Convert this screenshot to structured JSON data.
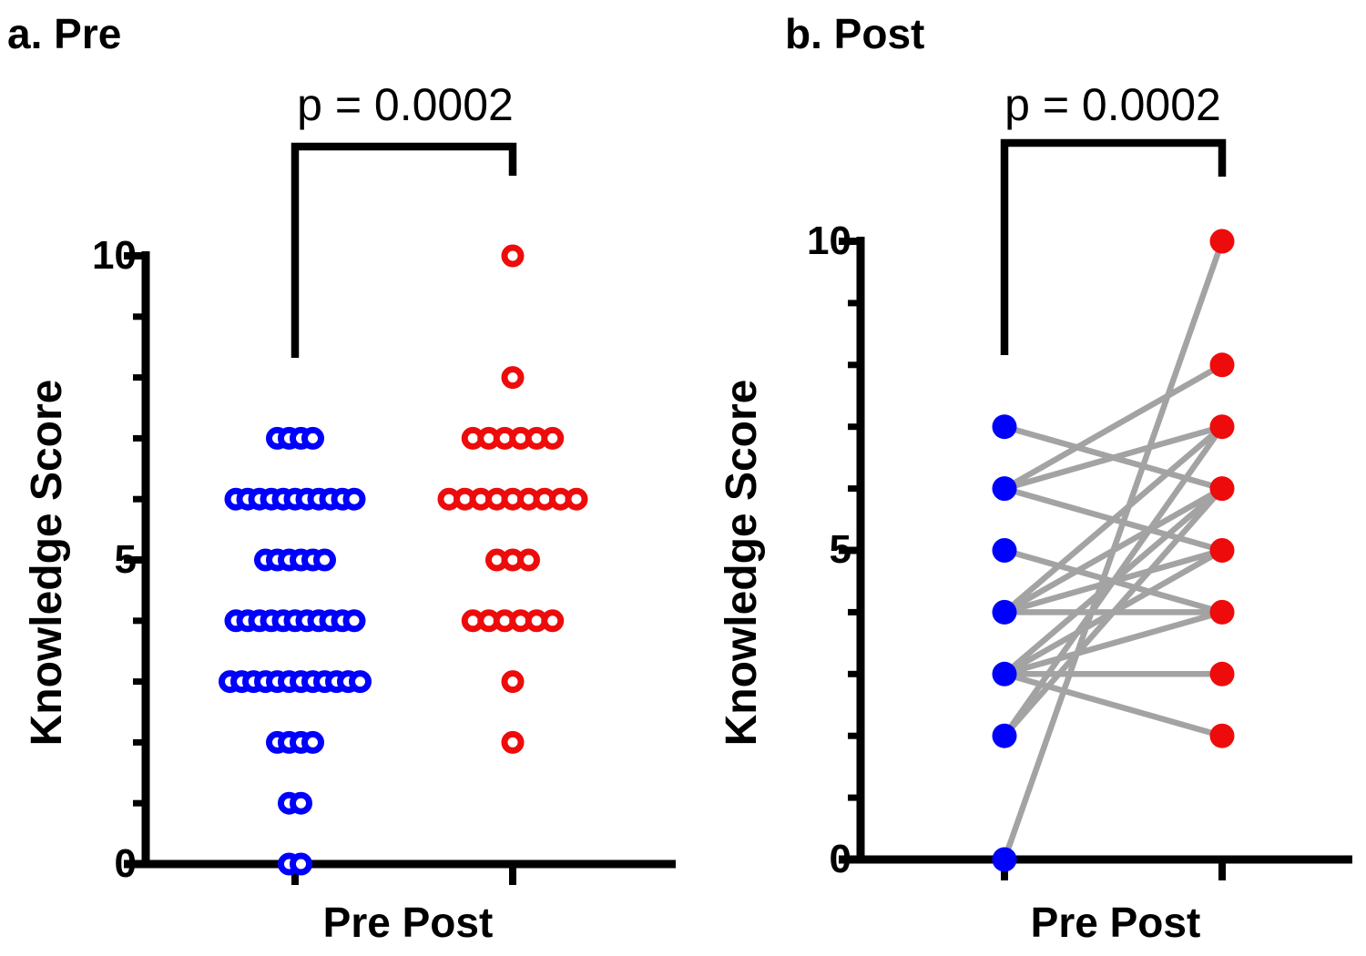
{
  "figure": {
    "background": "#ffffff",
    "description": "Two-panel GraphPad-style figure of knowledge scores before and after intervention"
  },
  "chart_data": [
    {
      "type": "scatter",
      "panel": "a",
      "title": "a. Pre",
      "annotation": "p = 0.0002",
      "ylabel": "Knowledge Score",
      "xlabel": "Pre Post",
      "categories": [
        "Pre",
        "Post"
      ],
      "ylim": [
        0,
        10
      ],
      "yticks_major": [
        0,
        5,
        10
      ],
      "yticks_minor": [
        1,
        2,
        3,
        4,
        6,
        7,
        8,
        9
      ],
      "ytick_labels": [
        "0",
        "5",
        "10"
      ],
      "marker": "open-circle",
      "legend": "none",
      "grid": false,
      "series": [
        {
          "name": "Pre",
          "color": "#0000FE",
          "value_counts": {
            "0": 2,
            "1": 2,
            "2": 4,
            "3": 12,
            "4": 11,
            "5": 6,
            "6": 11,
            "7": 4
          }
        },
        {
          "name": "Post",
          "color": "#EE0B0B",
          "value_counts": {
            "2": 1,
            "3": 1,
            "4": 6,
            "5": 3,
            "6": 9,
            "7": 6,
            "8": 1,
            "10": 1
          }
        }
      ]
    },
    {
      "type": "paired-line",
      "panel": "b",
      "title": "b. Post",
      "annotation": "p = 0.0002",
      "ylabel": "Knowledge Score",
      "xlabel": "Pre Post",
      "categories": [
        "Pre",
        "Post"
      ],
      "ylim": [
        0,
        10
      ],
      "yticks_major": [
        0,
        5,
        10
      ],
      "yticks_minor": [
        1,
        2,
        3,
        4,
        6,
        7,
        8,
        9
      ],
      "ytick_labels": [
        "0",
        "5",
        "10"
      ],
      "marker": "filled-circle",
      "line_color": "#A3A3A3",
      "grid": false,
      "series": [
        {
          "name": "Pre",
          "color": "#0000FE"
        },
        {
          "name": "Post",
          "color": "#EE0B0B"
        }
      ],
      "pairs": [
        [
          0,
          10
        ],
        [
          2,
          6
        ],
        [
          2,
          7
        ],
        [
          3,
          2
        ],
        [
          3,
          3
        ],
        [
          3,
          4
        ],
        [
          3,
          5
        ],
        [
          3,
          6
        ],
        [
          4,
          4
        ],
        [
          4,
          5
        ],
        [
          4,
          6
        ],
        [
          4,
          7
        ],
        [
          5,
          4
        ],
        [
          6,
          5
        ],
        [
          6,
          7
        ],
        [
          6,
          8
        ],
        [
          7,
          6
        ]
      ]
    }
  ]
}
